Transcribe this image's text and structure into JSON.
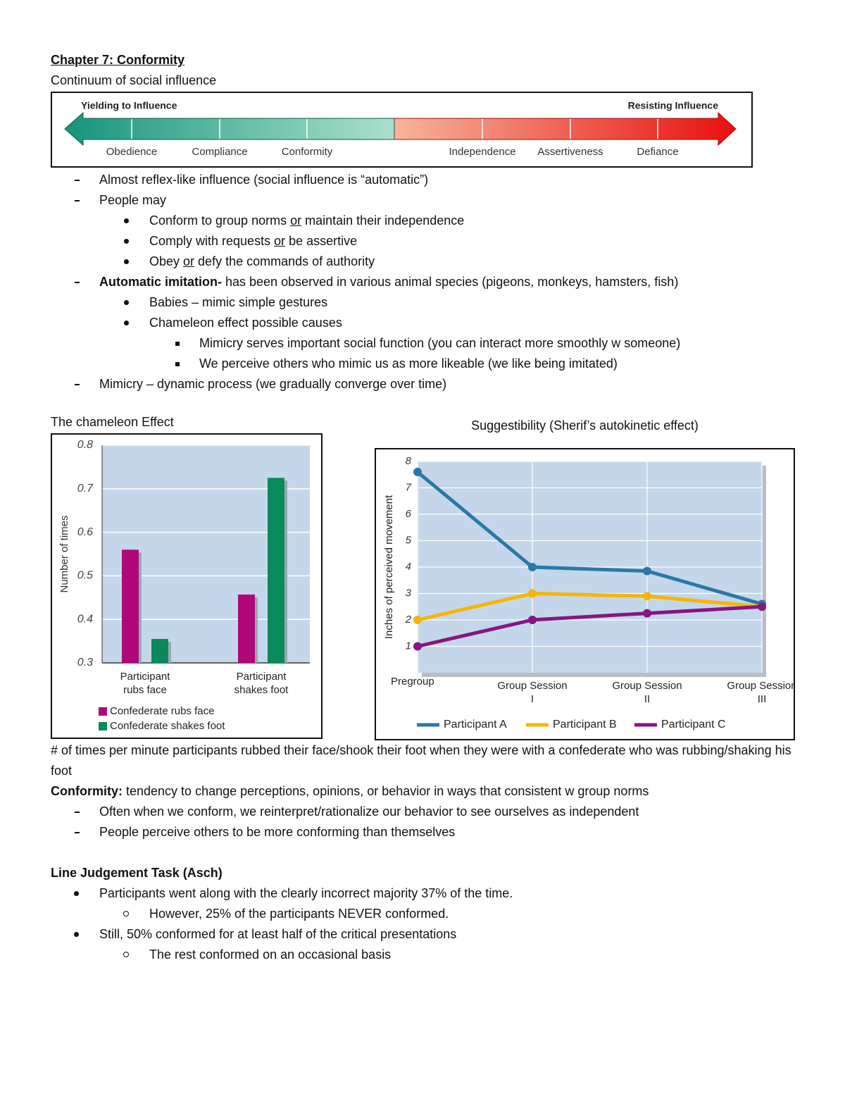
{
  "header": {
    "title": "Chapter 7: Conformity",
    "subtitle": "Continuum of social influence"
  },
  "continuum": {
    "left_label": "Yielding to Influence",
    "right_label": "Resisting Influence",
    "stages": [
      "Obedience",
      "Compliance",
      "Conformity",
      "Independence",
      "Assertiveness",
      "Defiance"
    ]
  },
  "notes": [
    {
      "text": "Almost reflex-like influence (social influence is “automatic”)"
    },
    {
      "text": "People may",
      "items": [
        [
          "Conform to group norms ",
          "or",
          " maintain their independence"
        ],
        [
          "Comply with requests ",
          "or",
          " be assertive"
        ],
        [
          "Obey ",
          "or",
          " defy the commands of authority"
        ]
      ]
    },
    {
      "term": "Automatic imitation-",
      "text": " has been observed in various animal species (pigeons, monkeys, hamsters, fish)",
      "items": [
        {
          "text": "Babies – mimic simple gestures"
        },
        {
          "text": "Chameleon effect possible causes",
          "items": [
            "Mimicry serves important social function (you can interact more smoothly w someone)",
            "We perceive others who mimic us as more likeable (we like being imitated)"
          ]
        }
      ]
    },
    {
      "text": "Mimicry – dynamic process (we gradually converge over time)"
    }
  ],
  "chart_data": [
    {
      "type": "bar",
      "title": "The chameleon Effect",
      "ylabel": "Number of times",
      "categories": [
        "Participant rubs face",
        "Participant shakes foot"
      ],
      "series": [
        {
          "name": "Confederate rubs face",
          "color": "#b0087a",
          "values": [
            0.56,
            0.457
          ]
        },
        {
          "name": "Confederate shakes foot",
          "color": "#0a8a5a",
          "values": [
            0.355,
            0.725
          ]
        }
      ],
      "ylim": [
        0.3,
        0.8
      ],
      "yticks": [
        0.3,
        0.4,
        0.5,
        0.6,
        0.7,
        0.8
      ],
      "grid": true
    },
    {
      "type": "line",
      "title": "Suggestibility (Sherif’s autokinetic effect)",
      "ylabel": "Inches of perceived movement",
      "categories": [
        "Pregroup",
        "Group Session I",
        "Group Session II",
        "Group Session III"
      ],
      "series": [
        {
          "name": "Participant A",
          "color": "#2a78a6",
          "values": [
            7.6,
            4.0,
            3.85,
            2.6
          ]
        },
        {
          "name": "Participant B",
          "color": "#f7b500",
          "values": [
            2.0,
            3.0,
            2.9,
            2.5
          ]
        },
        {
          "name": "Participant C",
          "color": "#87167f",
          "values": [
            1.0,
            2.0,
            2.25,
            2.5
          ]
        }
      ],
      "ylim": [
        0,
        8
      ],
      "yticks": [
        1,
        2,
        3,
        4,
        5,
        6,
        7,
        8
      ],
      "grid": true
    }
  ],
  "chameleon_caption": "# of times per minute participants rubbed their face/shook their foot when they were with a confederate who was rubbing/shaking his foot",
  "conformity": {
    "term": "Conformity:",
    "text": " tendency to change perceptions, opinions, or behavior in ways that consistent w group norms",
    "items": [
      "Often when we conform, we reinterpret/rationalize our behavior to see ourselves as independent",
      "People perceive others to be more conforming than themselves"
    ]
  },
  "asch": {
    "title": "Line Judgement Task (Asch)",
    "items": [
      {
        "text": "Participants went along with the clearly incorrect majority 37% of the time.",
        "items": [
          "However, 25% of the participants NEVER conformed."
        ]
      },
      {
        "text": "Still, 50% conformed for at least half of the critical presentations",
        "items": [
          "The rest conformed on an occasional basis"
        ]
      }
    ]
  }
}
